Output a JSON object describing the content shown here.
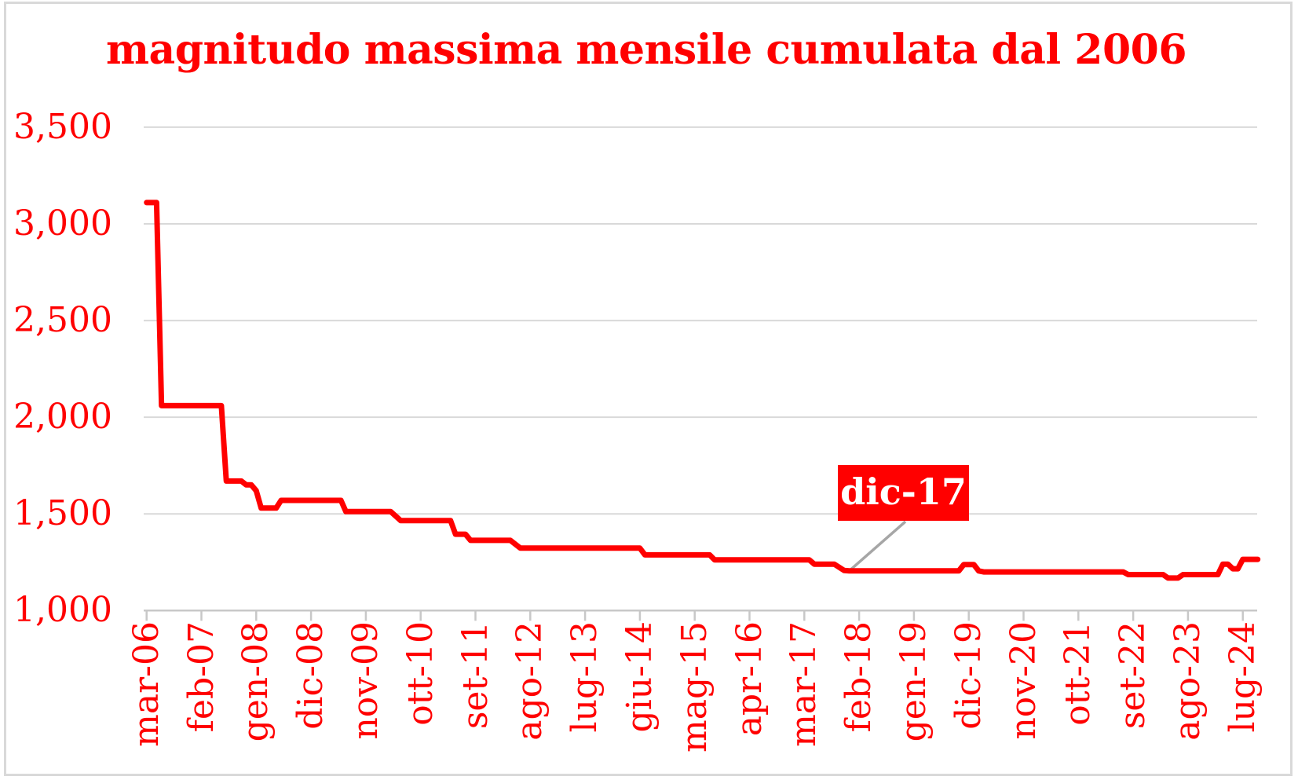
{
  "title": "magnitudo massima mensile cumulata dal 2006",
  "colors": {
    "accent": "#FF0000",
    "gridline": "#D9D9D9",
    "axis": "#C8C8C8",
    "callout_line": "#A6A6A6",
    "annotation_bg": "#FF0000",
    "annotation_text": "#FFFFFF",
    "background": "#FFFFFF"
  },
  "chart_data": {
    "type": "line",
    "title": "magnitudo massima mensile cumulata dal 2006",
    "xlabel": "",
    "ylabel": "",
    "ylim": [
      1000,
      3500
    ],
    "grid": true,
    "legend": "none",
    "y_ticks": [
      [
        "3,500",
        3500
      ],
      [
        "3,000",
        3000
      ],
      [
        "2,500",
        2500
      ],
      [
        "2,000",
        2000
      ],
      [
        "1,500",
        1500
      ],
      [
        "1,000",
        1000
      ]
    ],
    "x_tick_labels": [
      "mar-06",
      "feb-07",
      "gen-08",
      "dic-08",
      "nov-09",
      "ott-10",
      "set-11",
      "ago-12",
      "lug-13",
      "giu-14",
      "mag-15",
      "apr-16",
      "mar-17",
      "feb-18",
      "gen-19",
      "dic-19",
      "nov-20",
      "ott-21",
      "set-22",
      "ago-23",
      "lug-24"
    ],
    "series": [
      {
        "name": "magnitudo massima mensile cumulata",
        "points": [
          [
            "mar-06",
            3110
          ],
          [
            "mag-06",
            3110
          ],
          [
            "giu-06",
            2060
          ],
          [
            "giu-07",
            2060
          ],
          [
            "lug-07",
            1670
          ],
          [
            "ott-07",
            1670
          ],
          [
            "nov-07",
            1650
          ],
          [
            "dic-07",
            1650
          ],
          [
            "gen-08",
            1620
          ],
          [
            "feb-08",
            1530
          ],
          [
            "mag-08",
            1530
          ],
          [
            "giu-08",
            1570
          ],
          [
            "giu-09",
            1570
          ],
          [
            "lug-09",
            1512
          ],
          [
            "apr-10",
            1512
          ],
          [
            "giu-10",
            1465
          ],
          [
            "apr-11",
            1465
          ],
          [
            "mag-11",
            1395
          ],
          [
            "lug-11",
            1395
          ],
          [
            "ago-11",
            1363
          ],
          [
            "apr-12",
            1363
          ],
          [
            "giu-12",
            1323
          ],
          [
            "giu-14",
            1323
          ],
          [
            "lug-14",
            1288
          ],
          [
            "ago-15",
            1288
          ],
          [
            "set-15",
            1262
          ],
          [
            "apr-17",
            1262
          ],
          [
            "mag-17",
            1240
          ],
          [
            "set-17",
            1240
          ],
          [
            "nov-17",
            1207
          ],
          [
            "dic-17",
            1205
          ],
          [
            "ott-19",
            1205
          ],
          [
            "nov-19",
            1238
          ],
          [
            "gen-20",
            1238
          ],
          [
            "feb-20",
            1205
          ],
          [
            "mar-20",
            1200
          ],
          [
            "lug-22",
            1200
          ],
          [
            "ago-22",
            1186
          ],
          [
            "mar-23",
            1186
          ],
          [
            "apr-23",
            1168
          ],
          [
            "giu-23",
            1168
          ],
          [
            "lug-23",
            1186
          ],
          [
            "feb-24",
            1186
          ],
          [
            "mar-24",
            1240
          ],
          [
            "apr-24",
            1240
          ],
          [
            "mag-24",
            1216
          ],
          [
            "giu-24",
            1216
          ],
          [
            "lug-24",
            1265
          ],
          [
            "ott-24",
            1265
          ]
        ]
      }
    ],
    "annotation": {
      "label": "dic-17",
      "target_month": "dic-17",
      "target_value": 1205
    }
  }
}
